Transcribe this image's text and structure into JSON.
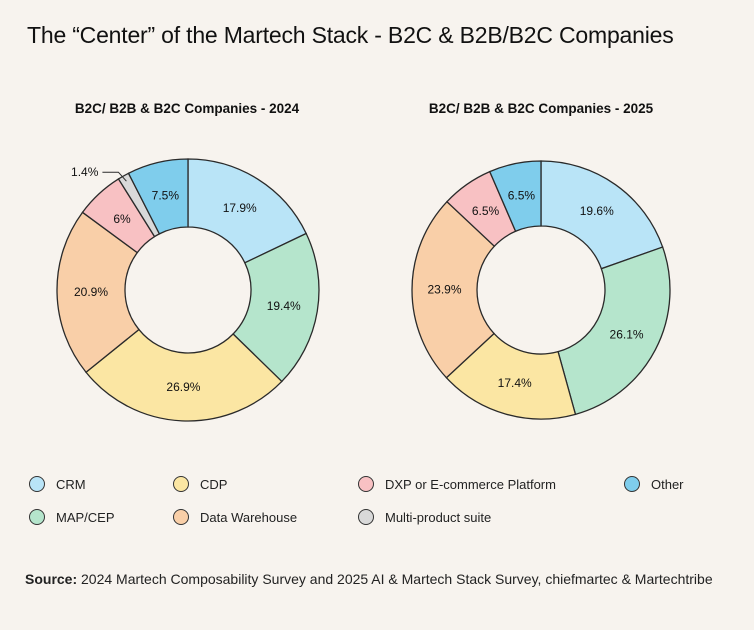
{
  "title": "The “Center” of the Martech Stack - B2C & B2B/B2C Companies",
  "colors": {
    "CRM": "#b9e4f7",
    "MAP/CEP": "#b5e5cc",
    "CDP": "#fbe6a3",
    "Data Warehouse": "#f9cfa8",
    "DXP or E-commerce Platform": "#f8c1c3",
    "Multi-product suite": "#d9d9d9",
    "Other": "#7fcdec",
    "stroke": "#2a2a2a",
    "background": "#f7f3ee"
  },
  "legend": [
    {
      "label": "CRM",
      "color": "#b9e4f7"
    },
    {
      "label": "CDP",
      "color": "#fbe6a3"
    },
    {
      "label": "DXP or E-commerce Platform",
      "color": "#f8c1c3"
    },
    {
      "label": "Other",
      "color": "#7fcdec"
    },
    {
      "label": "MAP/CEP",
      "color": "#b5e5cc"
    },
    {
      "label": "Data Warehouse",
      "color": "#f9cfa8"
    },
    {
      "label": "Multi-product suite",
      "color": "#d9d9d9"
    }
  ],
  "chart_data": [
    {
      "type": "pie",
      "donut": true,
      "title": "B2C/ B2B & B2C Companies - 2024",
      "slices": [
        {
          "label": "CRM",
          "value": 17.9,
          "display": "17.9%"
        },
        {
          "label": "MAP/CEP",
          "value": 19.4,
          "display": "19.4%"
        },
        {
          "label": "CDP",
          "value": 26.9,
          "display": "26.9%"
        },
        {
          "label": "Data Warehouse",
          "value": 20.9,
          "display": "20.9%"
        },
        {
          "label": "DXP or E-commerce Platform",
          "value": 6,
          "display": "6%"
        },
        {
          "label": "Multi-product suite",
          "value": 1.4,
          "display": "1.4%"
        },
        {
          "label": "Other",
          "value": 7.5,
          "display": "7.5%"
        }
      ]
    },
    {
      "type": "pie",
      "donut": true,
      "title": "B2C/ B2B & B2C Companies - 2025",
      "slices": [
        {
          "label": "CRM",
          "value": 19.6,
          "display": "19.6%"
        },
        {
          "label": "MAP/CEP",
          "value": 26.1,
          "display": "26.1%"
        },
        {
          "label": "CDP",
          "value": 17.4,
          "display": "17.4%"
        },
        {
          "label": "Data Warehouse",
          "value": 23.9,
          "display": "23.9%"
        },
        {
          "label": "DXP or E-commerce Platform",
          "value": 6.5,
          "display": "6.5%"
        },
        {
          "label": "Other",
          "value": 6.5,
          "display": "6.5%"
        }
      ]
    }
  ],
  "source": {
    "label": "Source:",
    "text": " 2024 Martech Composability Survey and 2025 AI & Martech Stack Survey, chiefmartec & Martechtribe"
  }
}
